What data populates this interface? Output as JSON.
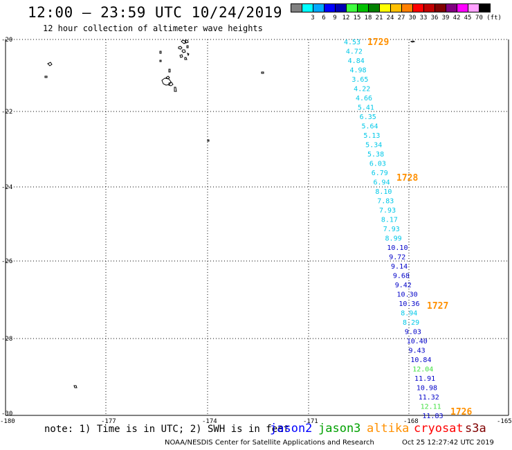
{
  "header": {
    "title": "12:00 — 23:59 UTC 10/24/2019",
    "subtitle": "12 hour collection of altimeter wave heights"
  },
  "scale": {
    "colors": [
      "#808080",
      "#00ffff",
      "#00a8ff",
      "#0000ff",
      "#0000b4",
      "#40ff40",
      "#00c000",
      "#008000",
      "#ffff00",
      "#ffc000",
      "#ff8000",
      "#ff0000",
      "#c00000",
      "#800000",
      "#800080",
      "#ff00ff",
      "#ffa0ff",
      "#000000"
    ],
    "labels": [
      "3",
      "6",
      "9",
      "12",
      "15",
      "18",
      "21",
      "24",
      "27",
      "30",
      "33",
      "36",
      "39",
      "42",
      "45",
      "70 (ft)"
    ]
  },
  "axes": {
    "lat_labels": [
      "-20",
      "-22",
      "-24",
      "-26",
      "-28",
      "-30"
    ],
    "lon_labels": [
      "-180",
      "-177",
      "-174",
      "-171",
      "-168",
      "-165"
    ]
  },
  "observations": [
    {
      "v": "4.53",
      "s": "c"
    },
    {
      "v": "4.72",
      "s": "c"
    },
    {
      "v": "4.84",
      "s": "c"
    },
    {
      "v": "4.98",
      "s": "c"
    },
    {
      "v": "3.65",
      "s": "c"
    },
    {
      "v": "4.22",
      "s": "c"
    },
    {
      "v": "4.66",
      "s": "c"
    },
    {
      "v": "5.41",
      "s": "c"
    },
    {
      "v": "6.35",
      "s": "c"
    },
    {
      "v": "5.64",
      "s": "c"
    },
    {
      "v": "5.13",
      "s": "c"
    },
    {
      "v": "5.34",
      "s": "c"
    },
    {
      "v": "5.38",
      "s": "c"
    },
    {
      "v": "6.03",
      "s": "c"
    },
    {
      "v": "6.79",
      "s": "c"
    },
    {
      "v": "6.94",
      "s": "c"
    },
    {
      "v": "8.10",
      "s": "c"
    },
    {
      "v": "7.83",
      "s": "c"
    },
    {
      "v": "7.93",
      "s": "c"
    },
    {
      "v": "8.17",
      "s": "c"
    },
    {
      "v": "7.93",
      "s": "c"
    },
    {
      "v": "8.99",
      "s": "c"
    },
    {
      "v": "10.10",
      "s": "b"
    },
    {
      "v": "9.72",
      "s": "b"
    },
    {
      "v": "9.14",
      "s": "b"
    },
    {
      "v": "9.68",
      "s": "b"
    },
    {
      "v": "9.42",
      "s": "b"
    },
    {
      "v": "10.30",
      "s": "b"
    },
    {
      "v": "10.36",
      "s": "b"
    },
    {
      "v": "8.94",
      "s": "c"
    },
    {
      "v": "8.29",
      "s": "c"
    },
    {
      "v": "9.03",
      "s": "b"
    },
    {
      "v": "10.40",
      "s": "b"
    },
    {
      "v": "9.43",
      "s": "b"
    },
    {
      "v": "10.84",
      "s": "b"
    },
    {
      "v": "12.04",
      "s": "g"
    },
    {
      "v": "11.91",
      "s": "b"
    },
    {
      "v": "10.98",
      "s": "b"
    },
    {
      "v": "11.32",
      "s": "b"
    },
    {
      "v": "12.11",
      "s": "g"
    },
    {
      "v": "11.83",
      "s": "b"
    }
  ],
  "times": [
    "1729",
    "1728",
    "1727",
    "1726"
  ],
  "footer": {
    "note": "note: 1) Time is in UTC; 2) SWH is in feet",
    "satellites": [
      {
        "name": "jason2",
        "color": "#0000ff"
      },
      {
        "name": "jason3",
        "color": "#00a000"
      },
      {
        "name": "altika",
        "color": "#ff9000"
      },
      {
        "name": "cryosat",
        "color": "#ff0000"
      },
      {
        "name": "s3a",
        "color": "#800000"
      }
    ],
    "credit": "NOAA/NESDIS Center for Satellite Applications and Research",
    "generated": "Oct 25 12:27:42 UTC 2019"
  }
}
